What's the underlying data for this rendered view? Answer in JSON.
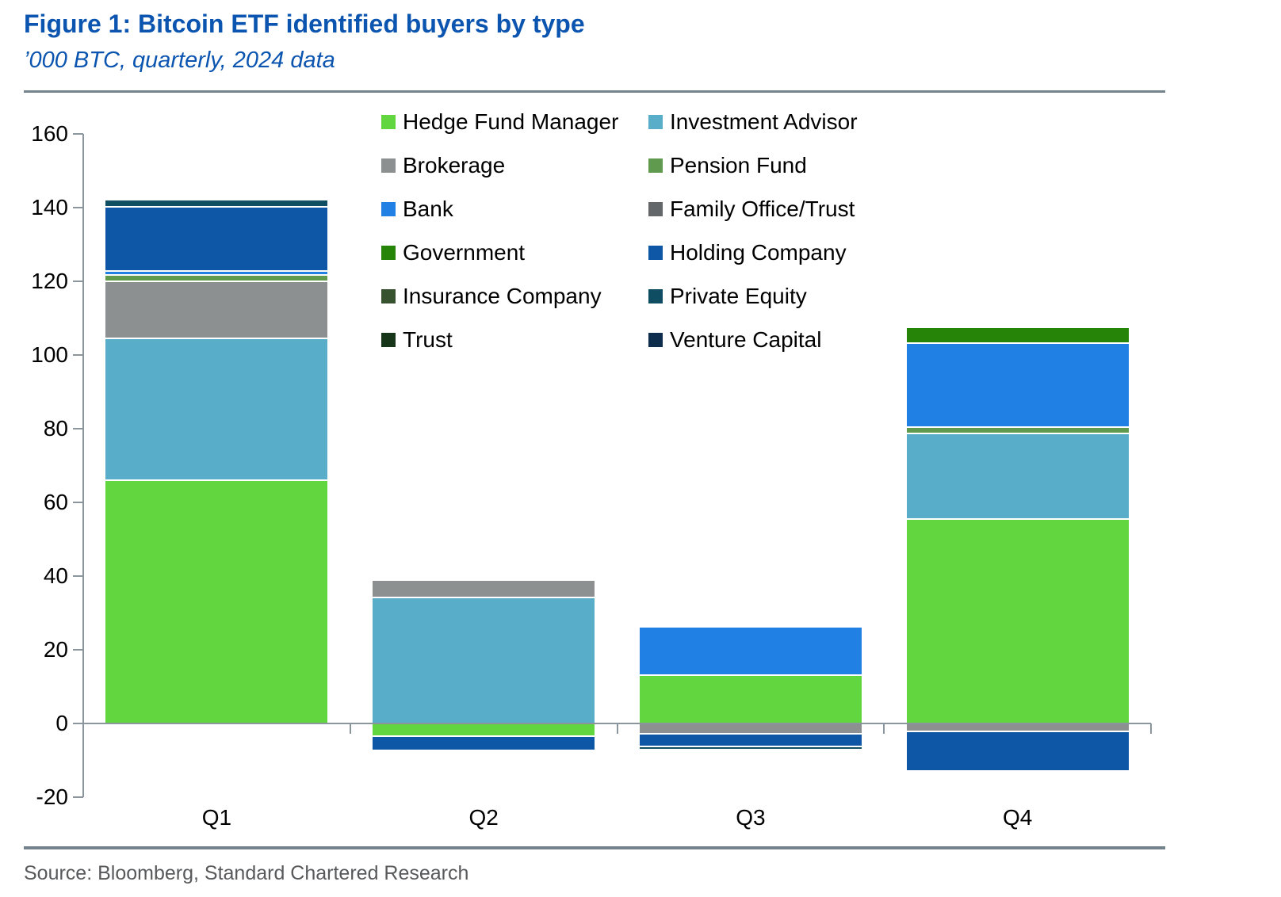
{
  "figure": {
    "title": "Figure 1: Bitcoin ETF identified buyers by type",
    "subtitle": "’000 BTC, quarterly, 2024 data",
    "source": "Source: Bloomberg, Standard Chartered Research"
  },
  "colors": {
    "title_blue": "#0b55b0",
    "axis_gray": "#8a959c",
    "rule_gray": "#74828c",
    "source_text": "#58595b"
  },
  "chart_data": {
    "type": "bar",
    "stacked": true,
    "title": "Figure 1: Bitcoin ETF identified buyers by type",
    "subtitle": "’000 BTC, quarterly, 2024 data",
    "categories": [
      "Q1",
      "Q2",
      "Q3",
      "Q4"
    ],
    "series": [
      {
        "name": "Hedge Fund Manager",
        "color": "#62d63e",
        "values": [
          66.0,
          -3.4,
          13.1,
          55.5
        ]
      },
      {
        "name": "Investment Advisor",
        "color": "#58adc9",
        "values": [
          38.5,
          34.2,
          0,
          23.3
        ]
      },
      {
        "name": "Brokerage",
        "color": "#8d9091",
        "values": [
          15.5,
          4.7,
          -2.7,
          -2.1
        ]
      },
      {
        "name": "Pension Fund",
        "color": "#5f9a4e",
        "values": [
          1.8,
          0,
          0,
          1.6
        ]
      },
      {
        "name": "Bank",
        "color": "#2080e4",
        "values": [
          1.0,
          0,
          13.1,
          22.8
        ]
      },
      {
        "name": "Family Office/Trust",
        "color": "#64676a",
        "values": [
          0,
          0,
          0,
          0
        ]
      },
      {
        "name": "Government",
        "color": "#268408",
        "values": [
          0,
          0,
          0,
          4.4
        ]
      },
      {
        "name": "Holding Company",
        "color": "#0e56a6",
        "values": [
          17.5,
          -4.0,
          -3.5,
          -10.8
        ]
      },
      {
        "name": "Insurance Company",
        "color": "#37522f",
        "values": [
          0,
          0,
          0,
          0
        ]
      },
      {
        "name": "Private Equity",
        "color": "#0f4d63",
        "values": [
          1.8,
          0,
          -0.9,
          0
        ]
      },
      {
        "name": "Trust",
        "color": "#173519",
        "values": [
          0,
          0,
          0,
          0
        ]
      },
      {
        "name": "Venture Capital",
        "color": "#0e2c4c",
        "values": [
          0,
          0,
          0,
          0
        ]
      }
    ],
    "xlabel": "",
    "ylabel": "",
    "ylim": [
      -20,
      160
    ],
    "y_step": 20,
    "grid": false,
    "legend_position": "top-center",
    "zero_line": true
  }
}
